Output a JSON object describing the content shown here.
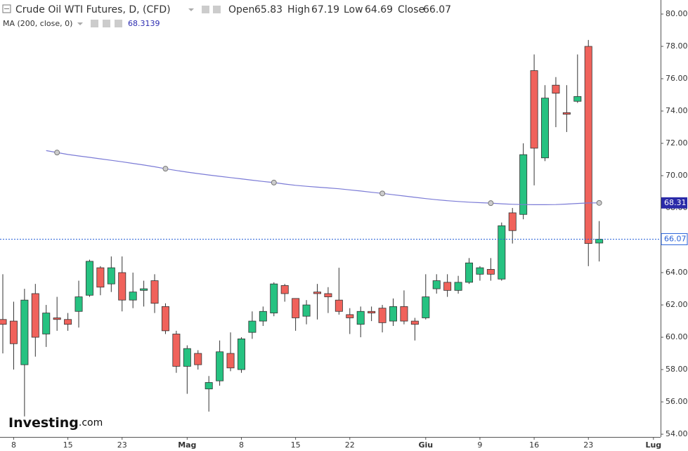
{
  "chart_data": {
    "type": "candlestick",
    "title": "Crude Oil WTI Futures, D, (CFD)",
    "legend_labels": [
      "Open",
      "High",
      "Low",
      "Close"
    ],
    "up_color": "#26c281",
    "down_color": "#f0625b",
    "open": [
      61.1,
      61.0,
      58.3,
      62.7,
      60.2,
      61.2,
      61.1,
      61.6,
      62.6,
      64.3,
      63.3,
      64.0,
      62.3,
      62.9,
      63.5,
      61.9,
      60.2,
      58.2,
      59.0,
      56.8,
      57.3,
      59.0,
      58.0,
      60.3,
      61.0,
      61.5,
      63.2,
      62.4,
      61.3,
      62.8,
      62.7,
      62.3,
      61.4,
      60.8,
      61.6,
      61.8,
      61.0,
      61.9,
      61.0,
      61.2,
      63.0,
      63.4,
      62.9,
      63.4,
      63.9,
      64.2,
      63.6,
      67.7,
      67.6,
      76.5,
      71.1,
      75.6,
      73.9,
      74.6,
      78.0,
      65.83
    ],
    "high": [
      63.9,
      62.2,
      63.0,
      63.3,
      62.0,
      62.5,
      61.5,
      63.5,
      64.8,
      64.4,
      65.0,
      65.0,
      64.0,
      63.5,
      63.9,
      62.1,
      60.4,
      59.5,
      59.2,
      57.6,
      59.8,
      60.3,
      60.0,
      61.6,
      61.9,
      63.4,
      63.3,
      62.4,
      62.3,
      63.3,
      63.1,
      64.3,
      61.8,
      61.9,
      61.9,
      62.0,
      62.4,
      62.9,
      61.2,
      63.9,
      63.9,
      63.9,
      63.8,
      64.9,
      64.4,
      64.9,
      67.1,
      68.0,
      72.0,
      77.5,
      75.6,
      76.1,
      75.6,
      77.5,
      78.4,
      67.19
    ],
    "low": [
      59.0,
      58.0,
      55.1,
      58.8,
      59.4,
      60.4,
      60.4,
      60.6,
      62.5,
      62.6,
      62.8,
      61.6,
      61.8,
      61.9,
      61.5,
      60.2,
      57.8,
      56.5,
      58.0,
      55.4,
      57.0,
      57.9,
      57.8,
      59.9,
      60.7,
      61.3,
      62.2,
      60.4,
      60.8,
      61.1,
      61.5,
      61.4,
      60.2,
      60.0,
      61.0,
      60.3,
      60.7,
      60.8,
      59.8,
      61.1,
      62.7,
      62.5,
      62.7,
      63.3,
      63.5,
      63.5,
      63.5,
      65.8,
      67.3,
      69.4,
      70.9,
      73.0,
      72.7,
      74.5,
      64.4,
      64.69
    ],
    "close": [
      60.8,
      59.6,
      62.3,
      60.0,
      61.5,
      61.1,
      60.8,
      62.5,
      64.7,
      63.1,
      64.3,
      62.3,
      62.8,
      63.0,
      62.1,
      60.4,
      58.2,
      59.3,
      58.3,
      57.2,
      59.1,
      58.1,
      59.9,
      61.0,
      61.6,
      63.3,
      62.7,
      61.2,
      62.0,
      62.7,
      62.5,
      61.6,
      61.2,
      61.6,
      61.5,
      60.9,
      61.9,
      61.0,
      60.8,
      62.5,
      63.5,
      62.9,
      63.4,
      64.6,
      64.3,
      63.9,
      66.9,
      66.6,
      71.3,
      71.7,
      74.8,
      75.1,
      73.8,
      74.9,
      65.8,
      66.07
    ],
    "ma": {
      "name": "MA (200, close, 0)",
      "color": "#7b7bd6",
      "value_label": "68.3139",
      "axis_label": "68.31",
      "values": [
        null,
        null,
        null,
        null,
        71.55,
        71.43,
        71.31,
        71.22,
        71.13,
        71.04,
        70.95,
        70.86,
        70.76,
        70.66,
        70.55,
        70.43,
        70.32,
        70.22,
        70.13,
        70.04,
        69.96,
        69.88,
        69.8,
        69.72,
        69.64,
        69.57,
        69.48,
        69.4,
        69.34,
        69.29,
        69.24,
        69.19,
        69.12,
        69.05,
        68.97,
        68.9,
        68.82,
        68.74,
        68.66,
        68.58,
        68.51,
        68.45,
        68.4,
        68.36,
        68.33,
        68.3,
        68.26,
        68.23,
        68.21,
        68.2,
        68.2,
        68.21,
        68.24,
        68.28,
        68.31,
        68.3139
      ]
    },
    "xlim": [
      -0.26,
      60.66
    ],
    "xticks": [
      {
        "value": 1,
        "label": "8"
      },
      {
        "value": 6,
        "label": "15"
      },
      {
        "value": 11,
        "label": "23"
      },
      {
        "value": 17,
        "label": "Mag"
      },
      {
        "value": 22,
        "label": "8"
      },
      {
        "value": 27,
        "label": "15"
      },
      {
        "value": 32,
        "label": "22"
      },
      {
        "value": 39,
        "label": "Giu"
      },
      {
        "value": 44,
        "label": "9"
      },
      {
        "value": 49,
        "label": "16"
      },
      {
        "value": 54,
        "label": "23"
      },
      {
        "value": 60,
        "label": "Lug"
      }
    ],
    "ylim": [
      53.83,
      80.87
    ],
    "yticks": [
      {
        "value": 54,
        "label": "54.00"
      },
      {
        "value": 56,
        "label": "56.00"
      },
      {
        "value": 58,
        "label": "58.00"
      },
      {
        "value": 60,
        "label": "60.00"
      },
      {
        "value": 62,
        "label": "62.00"
      },
      {
        "value": 64,
        "label": "64.00"
      },
      {
        "value": 66,
        "label": "66.00"
      },
      {
        "value": 68,
        "label": "68.00"
      },
      {
        "value": 70,
        "label": "70.00"
      },
      {
        "value": 72,
        "label": "72.00"
      },
      {
        "value": 74,
        "label": "74.00"
      },
      {
        "value": 76,
        "label": "76.00"
      },
      {
        "value": 78,
        "label": "78.00"
      },
      {
        "value": 80,
        "label": "80.00"
      }
    ],
    "logo": [
      "Investing",
      ".com"
    ]
  }
}
